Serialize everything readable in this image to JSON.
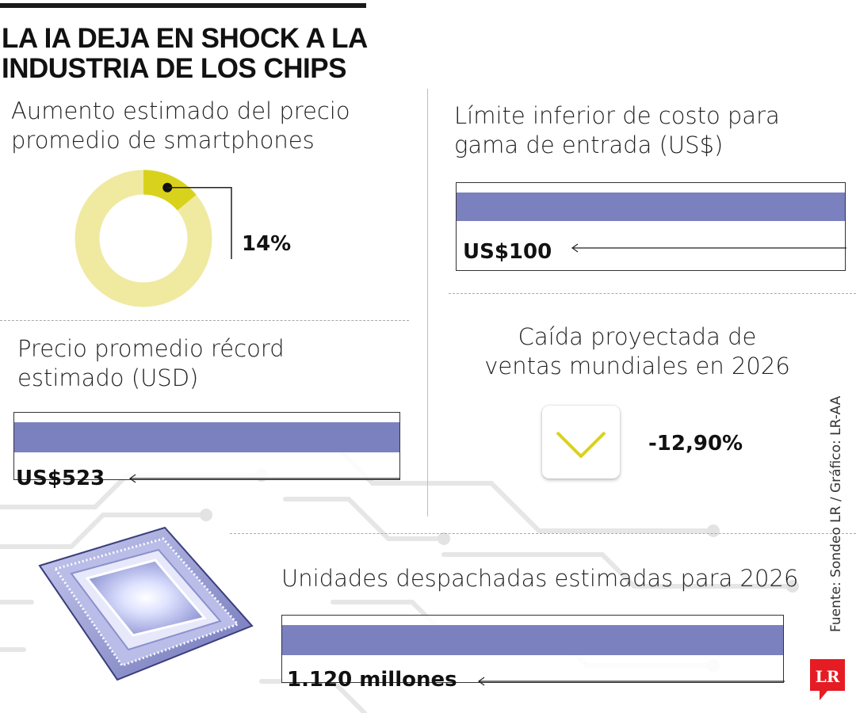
{
  "title": {
    "line1": "LA IA DEJA EN SHOCK A LA",
    "line2": "INDUSTRIA DE LOS CHIPS"
  },
  "colors": {
    "bar": "#7b81be",
    "donut_track": "#efeaa0",
    "donut_accent": "#d9d21c",
    "logo": "#e51c23"
  },
  "chart_data": [
    {
      "type": "pie",
      "title_line1": "Aumento estimado del precio",
      "title_line2": "promedio de smartphones",
      "value": 14,
      "value_label": "14%"
    },
    {
      "type": "bar",
      "title_line1": "Límite inferior de costo para",
      "title_line2": "gama de entrada (US$)",
      "value": 100,
      "value_label": "US$100"
    },
    {
      "type": "bar",
      "title_line1": "Precio promedio récord",
      "title_line2": "estimado (USD)",
      "value": 523,
      "value_label": "US$523"
    },
    {
      "type": "table",
      "title_line1": "Caída proyectada de",
      "title_line2": "ventas mundiales en 2026",
      "value": -12.9,
      "value_label": "-12,90%",
      "icon": "chevron-down-icon"
    },
    {
      "type": "bar",
      "title_line1": "Unidades despachadas estimadas para 2026",
      "value": 1120,
      "value_label": "1.120 millones"
    }
  ],
  "source": "Fuente: Sondeo LR / Gráfico: LR-AA",
  "logo_text": "LR"
}
